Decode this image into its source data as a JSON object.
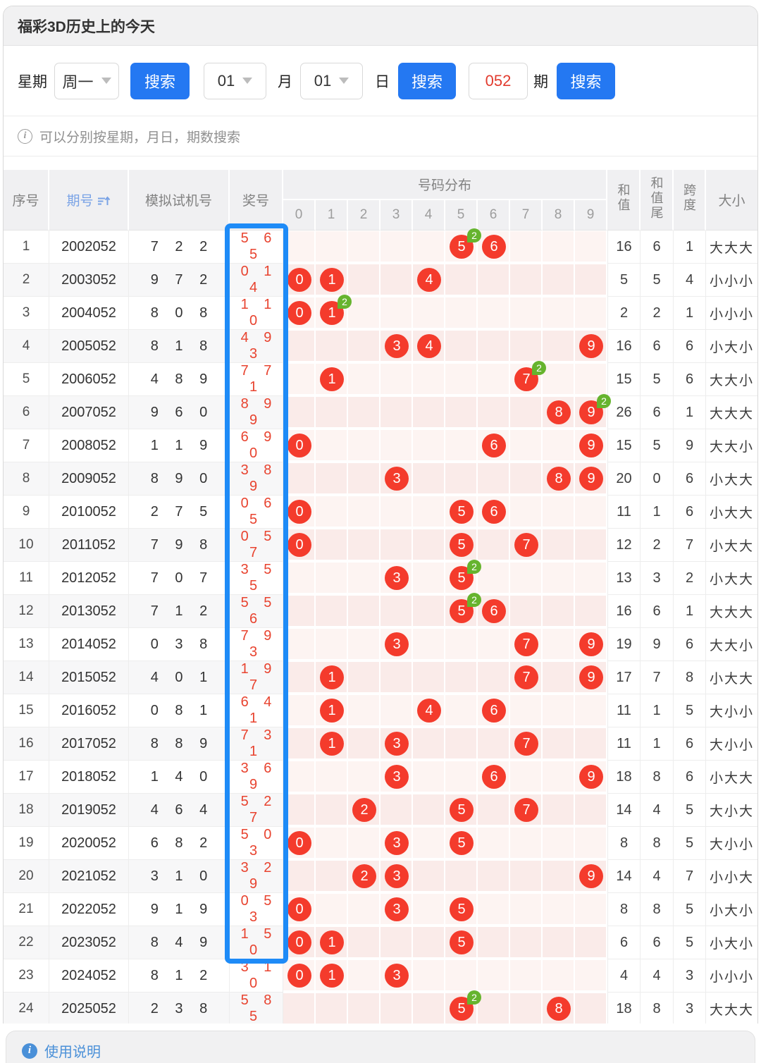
{
  "page": {
    "title": "福彩3D历史上的今天",
    "filter": {
      "week_label": "星期",
      "week_value": "周一",
      "search_label": "搜索",
      "month_value": "01",
      "month_label": "月",
      "day_value": "01",
      "day_label": "日",
      "period_value": "052",
      "period_label": "期"
    },
    "hint": "可以分别按星期，月日，期数搜索",
    "usage_label": "使用说明"
  },
  "colors": {
    "button_blue": "#2478f2",
    "highlight_blue": "#1e8bf7",
    "ball_red": "#f43b2c",
    "badge_green": "#66b42e",
    "prize_red": "#e8432f",
    "link_blue": "#4a90d8"
  },
  "table": {
    "headers": {
      "index": "序号",
      "period": "期号",
      "machine": "模拟试机号",
      "prize": "奖号",
      "distribution": "号码分布",
      "digits": [
        "0",
        "1",
        "2",
        "3",
        "4",
        "5",
        "6",
        "7",
        "8",
        "9"
      ],
      "sum": "和值",
      "sum_tail": "和值尾",
      "span": "跨度",
      "size": "大小"
    },
    "rows": [
      {
        "index": "1",
        "period": "2002052",
        "machine": "722",
        "prize": "565",
        "marks": [
          [
            5,
            2
          ],
          [
            6,
            1
          ]
        ],
        "sum": "16",
        "tail": "6",
        "span": "1",
        "size": "大大大"
      },
      {
        "index": "2",
        "period": "2003052",
        "machine": "972",
        "prize": "014",
        "marks": [
          [
            0,
            1
          ],
          [
            1,
            1
          ],
          [
            4,
            1
          ]
        ],
        "sum": "5",
        "tail": "5",
        "span": "4",
        "size": "小小小"
      },
      {
        "index": "3",
        "period": "2004052",
        "machine": "808",
        "prize": "110",
        "marks": [
          [
            0,
            1
          ],
          [
            1,
            2
          ]
        ],
        "sum": "2",
        "tail": "2",
        "span": "1",
        "size": "小小小"
      },
      {
        "index": "4",
        "period": "2005052",
        "machine": "818",
        "prize": "493",
        "marks": [
          [
            3,
            1
          ],
          [
            4,
            1
          ],
          [
            9,
            1
          ]
        ],
        "sum": "16",
        "tail": "6",
        "span": "6",
        "size": "小大小"
      },
      {
        "index": "5",
        "period": "2006052",
        "machine": "489",
        "prize": "771",
        "marks": [
          [
            1,
            1
          ],
          [
            7,
            2
          ]
        ],
        "sum": "15",
        "tail": "5",
        "span": "6",
        "size": "大大小"
      },
      {
        "index": "6",
        "period": "2007052",
        "machine": "960",
        "prize": "899",
        "marks": [
          [
            8,
            1
          ],
          [
            9,
            2
          ]
        ],
        "sum": "26",
        "tail": "6",
        "span": "1",
        "size": "大大大"
      },
      {
        "index": "7",
        "period": "2008052",
        "machine": "119",
        "prize": "690",
        "marks": [
          [
            0,
            1
          ],
          [
            6,
            1
          ],
          [
            9,
            1
          ]
        ],
        "sum": "15",
        "tail": "5",
        "span": "9",
        "size": "大大小"
      },
      {
        "index": "8",
        "period": "2009052",
        "machine": "890",
        "prize": "389",
        "marks": [
          [
            3,
            1
          ],
          [
            8,
            1
          ],
          [
            9,
            1
          ]
        ],
        "sum": "20",
        "tail": "0",
        "span": "6",
        "size": "小大大"
      },
      {
        "index": "9",
        "period": "2010052",
        "machine": "275",
        "prize": "065",
        "marks": [
          [
            0,
            1
          ],
          [
            5,
            1
          ],
          [
            6,
            1
          ]
        ],
        "sum": "11",
        "tail": "1",
        "span": "6",
        "size": "小大大"
      },
      {
        "index": "10",
        "period": "2011052",
        "machine": "798",
        "prize": "057",
        "marks": [
          [
            0,
            1
          ],
          [
            5,
            1
          ],
          [
            7,
            1
          ]
        ],
        "sum": "12",
        "tail": "2",
        "span": "7",
        "size": "小大大"
      },
      {
        "index": "11",
        "period": "2012052",
        "machine": "707",
        "prize": "355",
        "marks": [
          [
            3,
            1
          ],
          [
            5,
            2
          ]
        ],
        "sum": "13",
        "tail": "3",
        "span": "2",
        "size": "小大大"
      },
      {
        "index": "12",
        "period": "2013052",
        "machine": "712",
        "prize": "556",
        "marks": [
          [
            5,
            2
          ],
          [
            6,
            1
          ]
        ],
        "sum": "16",
        "tail": "6",
        "span": "1",
        "size": "大大大"
      },
      {
        "index": "13",
        "period": "2014052",
        "machine": "038",
        "prize": "793",
        "marks": [
          [
            3,
            1
          ],
          [
            7,
            1
          ],
          [
            9,
            1
          ]
        ],
        "sum": "19",
        "tail": "9",
        "span": "6",
        "size": "大大小"
      },
      {
        "index": "14",
        "period": "2015052",
        "machine": "401",
        "prize": "197",
        "marks": [
          [
            1,
            1
          ],
          [
            7,
            1
          ],
          [
            9,
            1
          ]
        ],
        "sum": "17",
        "tail": "7",
        "span": "8",
        "size": "小大大"
      },
      {
        "index": "15",
        "period": "2016052",
        "machine": "081",
        "prize": "641",
        "marks": [
          [
            1,
            1
          ],
          [
            4,
            1
          ],
          [
            6,
            1
          ]
        ],
        "sum": "11",
        "tail": "1",
        "span": "5",
        "size": "大小小"
      },
      {
        "index": "16",
        "period": "2017052",
        "machine": "889",
        "prize": "731",
        "marks": [
          [
            1,
            1
          ],
          [
            3,
            1
          ],
          [
            7,
            1
          ]
        ],
        "sum": "11",
        "tail": "1",
        "span": "6",
        "size": "大小小"
      },
      {
        "index": "17",
        "period": "2018052",
        "machine": "140",
        "prize": "369",
        "marks": [
          [
            3,
            1
          ],
          [
            6,
            1
          ],
          [
            9,
            1
          ]
        ],
        "sum": "18",
        "tail": "8",
        "span": "6",
        "size": "小大大"
      },
      {
        "index": "18",
        "period": "2019052",
        "machine": "464",
        "prize": "527",
        "marks": [
          [
            2,
            1
          ],
          [
            5,
            1
          ],
          [
            7,
            1
          ]
        ],
        "sum": "14",
        "tail": "4",
        "span": "5",
        "size": "大小大"
      },
      {
        "index": "19",
        "period": "2020052",
        "machine": "682",
        "prize": "503",
        "marks": [
          [
            0,
            1
          ],
          [
            3,
            1
          ],
          [
            5,
            1
          ]
        ],
        "sum": "8",
        "tail": "8",
        "span": "5",
        "size": "大小小"
      },
      {
        "index": "20",
        "period": "2021052",
        "machine": "310",
        "prize": "329",
        "marks": [
          [
            2,
            1
          ],
          [
            3,
            1
          ],
          [
            9,
            1
          ]
        ],
        "sum": "14",
        "tail": "4",
        "span": "7",
        "size": "小小大"
      },
      {
        "index": "21",
        "period": "2022052",
        "machine": "919",
        "prize": "053",
        "marks": [
          [
            0,
            1
          ],
          [
            3,
            1
          ],
          [
            5,
            1
          ]
        ],
        "sum": "8",
        "tail": "8",
        "span": "5",
        "size": "小大小"
      },
      {
        "index": "22",
        "period": "2023052",
        "machine": "849",
        "prize": "150",
        "marks": [
          [
            0,
            1
          ],
          [
            1,
            1
          ],
          [
            5,
            1
          ]
        ],
        "sum": "6",
        "tail": "6",
        "span": "5",
        "size": "小大小"
      },
      {
        "index": "23",
        "period": "2024052",
        "machine": "812",
        "prize": "310",
        "marks": [
          [
            0,
            1
          ],
          [
            1,
            1
          ],
          [
            3,
            1
          ]
        ],
        "sum": "4",
        "tail": "4",
        "span": "3",
        "size": "小小小"
      },
      {
        "index": "24",
        "period": "2025052",
        "machine": "238",
        "prize": "585",
        "marks": [
          [
            5,
            2
          ],
          [
            8,
            1
          ]
        ],
        "sum": "18",
        "tail": "8",
        "span": "3",
        "size": "大大大"
      }
    ]
  }
}
